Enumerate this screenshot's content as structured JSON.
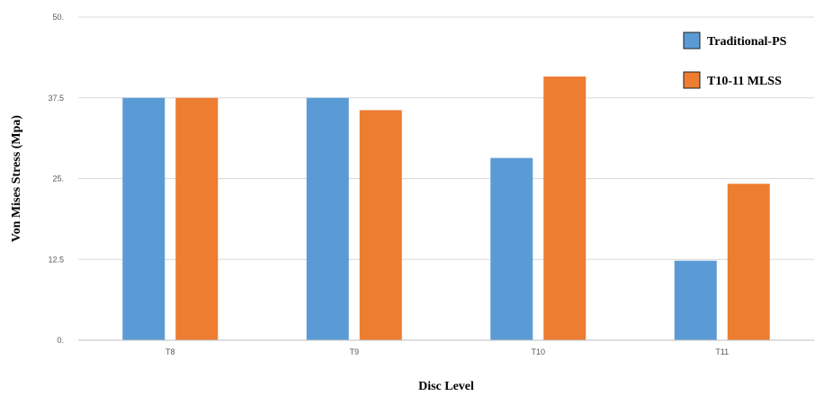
{
  "chart_data": {
    "type": "bar",
    "categories": [
      "T8",
      "T9",
      "T10",
      "T11"
    ],
    "series": [
      {
        "name": "Traditional-PS",
        "values": [
          37.5,
          37.5,
          28.2,
          12.3
        ],
        "color": "#5b9bd5"
      },
      {
        "name": "T10-11 MLSS",
        "values": [
          37.5,
          35.6,
          40.8,
          24.2
        ],
        "color": "#ed7d31"
      }
    ],
    "title": "",
    "xlabel": "Disc Level",
    "ylabel": "Von Mises Stress (Mpa)",
    "ylim": [
      0,
      50
    ],
    "yticks": [
      0,
      12.5,
      25,
      37.5,
      50
    ],
    "ytick_labels": [
      "0.",
      "12.5",
      "25.",
      "37.5",
      "50."
    ],
    "grid": true,
    "legend_position": "top-right"
  }
}
